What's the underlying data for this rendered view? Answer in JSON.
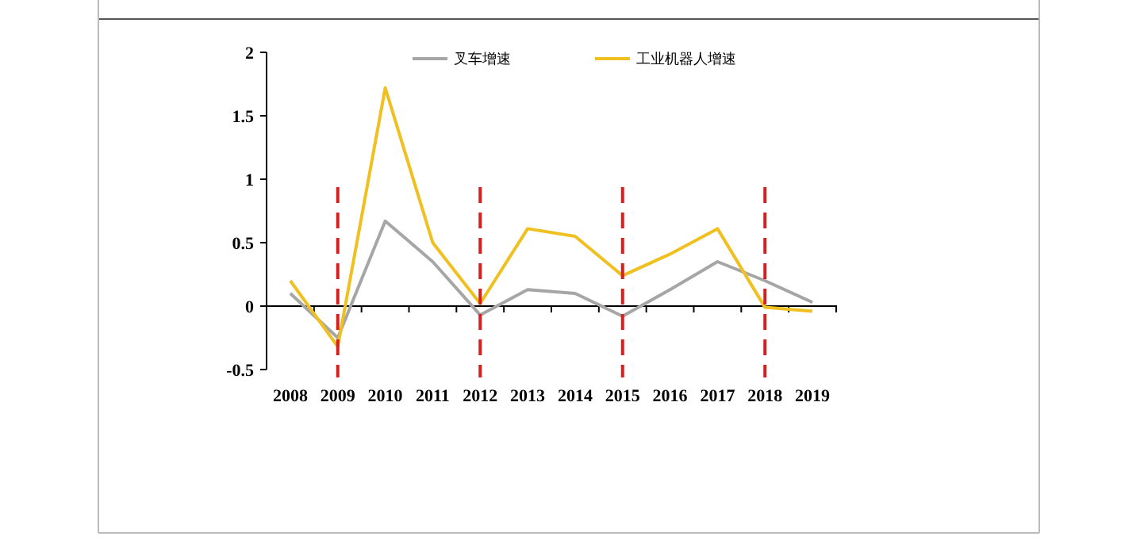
{
  "chart_data": {
    "type": "line",
    "categories": [
      "2008",
      "2009",
      "2010",
      "2011",
      "2012",
      "2013",
      "2014",
      "2015",
      "2016",
      "2017",
      "2018",
      "2019"
    ],
    "series": [
      {
        "name": "叉车增速",
        "color": "#a6a6a6",
        "values": [
          0.1,
          -0.25,
          0.67,
          0.35,
          -0.07,
          0.13,
          0.1,
          -0.08,
          0.13,
          0.35,
          0.2,
          0.03
        ]
      },
      {
        "name": "工业机器人增速",
        "color": "#f0c020",
        "values": [
          0.2,
          -0.32,
          1.72,
          0.5,
          0.02,
          0.61,
          0.55,
          0.24,
          0.41,
          0.61,
          -0.01,
          -0.04
        ]
      }
    ],
    "ylim": [
      -0.5,
      2
    ],
    "yticks": [
      -0.5,
      0,
      0.5,
      1,
      1.5,
      2
    ],
    "grid": false,
    "legend": "top",
    "marker": "none",
    "line_style": "solid",
    "ref_lines": [
      {
        "axis": "x",
        "value": "2009",
        "color": "#d62020",
        "line_style": "dashed"
      },
      {
        "axis": "x",
        "value": "2012",
        "color": "#d62020",
        "line_style": "dashed"
      },
      {
        "axis": "x",
        "value": "2015",
        "color": "#d62020",
        "line_style": "dashed"
      },
      {
        "axis": "x",
        "value": "2018",
        "color": "#d62020",
        "line_style": "dashed"
      }
    ]
  }
}
